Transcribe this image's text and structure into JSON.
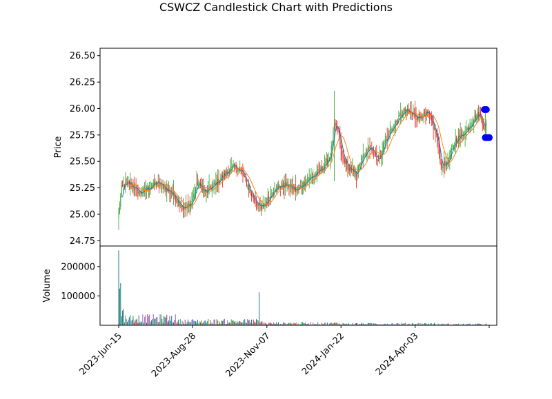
{
  "chart_data": {
    "type": "candlestick",
    "title": "CSWCZ Candlestick Chart with Predictions",
    "price_panel": {
      "ylabel": "Price",
      "ylim": [
        24.7,
        26.57
      ],
      "yticks": [
        "24.75",
        "25.00",
        "25.25",
        "25.50",
        "25.75",
        "26.00",
        "26.25",
        "26.50"
      ],
      "up_color": "#2ca02c",
      "down_color": "#e8201a",
      "ma_short_color": "#1f77b4",
      "ma_long_color": "#ff7f0e",
      "prediction_color": "#0000ff",
      "anchors": [
        [
          0,
          25.0
        ],
        [
          3,
          25.25
        ],
        [
          10,
          25.3
        ],
        [
          22,
          25.2
        ],
        [
          40,
          25.3
        ],
        [
          55,
          25.2
        ],
        [
          68,
          25.05
        ],
        [
          75,
          25.1
        ],
        [
          82,
          25.3
        ],
        [
          90,
          25.2
        ],
        [
          102,
          25.3
        ],
        [
          112,
          25.4
        ],
        [
          120,
          25.45
        ],
        [
          128,
          25.4
        ],
        [
          137,
          25.2
        ],
        [
          148,
          25.05
        ],
        [
          152,
          25.1
        ],
        [
          162,
          25.25
        ],
        [
          175,
          25.28
        ],
        [
          185,
          25.22
        ],
        [
          195,
          25.32
        ],
        [
          205,
          25.38
        ],
        [
          213,
          25.45
        ],
        [
          220,
          25.55
        ],
        [
          224,
          25.85
        ],
        [
          228,
          25.78
        ],
        [
          232,
          25.55
        ],
        [
          240,
          25.42
        ],
        [
          247,
          25.38
        ],
        [
          252,
          25.5
        ],
        [
          262,
          25.65
        ],
        [
          270,
          25.5
        ],
        [
          275,
          25.65
        ],
        [
          283,
          25.8
        ],
        [
          292,
          25.92
        ],
        [
          298,
          25.98
        ],
        [
          310,
          25.92
        ],
        [
          322,
          25.95
        ],
        [
          330,
          25.75
        ],
        [
          335,
          25.45
        ],
        [
          342,
          25.5
        ],
        [
          350,
          25.7
        ],
        [
          360,
          25.78
        ],
        [
          370,
          25.92
        ],
        [
          375,
          25.95
        ],
        [
          380,
          25.82
        ],
        [
          382,
          25.85
        ]
      ],
      "predictions": [
        {
          "x": 380,
          "y": 25.99
        },
        {
          "x": 382,
          "y": 25.99
        },
        {
          "x": 381,
          "y": 25.725
        },
        {
          "x": 383,
          "y": 25.725
        },
        {
          "x": 385,
          "y": 25.725
        }
      ]
    },
    "volume_panel": {
      "ylabel": "Volume",
      "ylim": [
        0,
        270000
      ],
      "yticks": [
        "100000",
        "200000"
      ],
      "spikes": [
        {
          "x": 0,
          "v": 255000
        },
        {
          "x": 1,
          "v": 125000
        },
        {
          "x": 2,
          "v": 143000
        },
        {
          "x": 4,
          "v": 50000
        },
        {
          "x": 5,
          "v": 55000
        },
        {
          "x": 146,
          "v": 112000
        }
      ]
    },
    "x_axis": {
      "count": 390,
      "tick_labels": [
        {
          "index": 0,
          "label": "2023-Jun-15"
        },
        {
          "index": 77,
          "label": "2023-Aug-28"
        },
        {
          "index": 154,
          "label": "2023-Nov-07"
        },
        {
          "index": 231,
          "label": "2024-Jan-22"
        },
        {
          "index": 308,
          "label": "2024-Apr-03"
        },
        {
          "index": 385,
          "label": ""
        }
      ]
    }
  }
}
